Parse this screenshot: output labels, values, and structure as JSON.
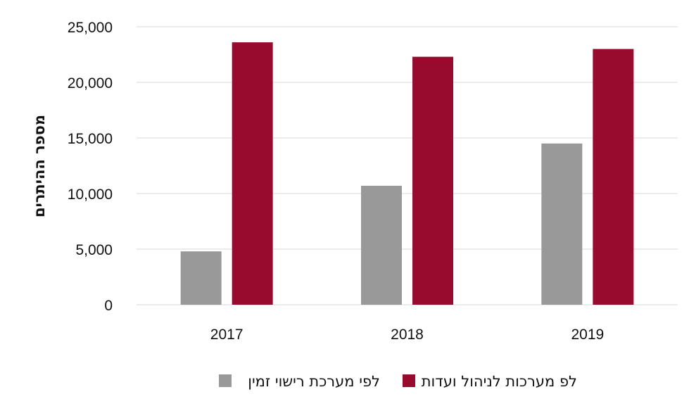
{
  "chart_data": {
    "type": "bar",
    "title": "",
    "xlabel": "",
    "ylabel": "מספר ההיתרים",
    "ylim": [
      0,
      25000
    ],
    "yticks": [
      0,
      5000,
      10000,
      15000,
      20000,
      25000
    ],
    "ytick_labels": [
      "0",
      "5,000",
      "10,000",
      "15,000",
      "20,000",
      "25,000"
    ],
    "categories": [
      "2017",
      "2018",
      "2019"
    ],
    "grid": true,
    "legend_position": "bottom",
    "series": [
      {
        "name": "לפי מערכת רישוי זמין",
        "color": "#999999",
        "values": [
          4800,
          10700,
          14500
        ]
      },
      {
        "name": "לפ מערכות לניהול ועדות",
        "color": "#990a2f",
        "values": [
          23600,
          22300,
          23000
        ]
      }
    ]
  },
  "colors": {
    "gridline": "#d9d9d9",
    "axis_line": "#d9d9d9"
  }
}
